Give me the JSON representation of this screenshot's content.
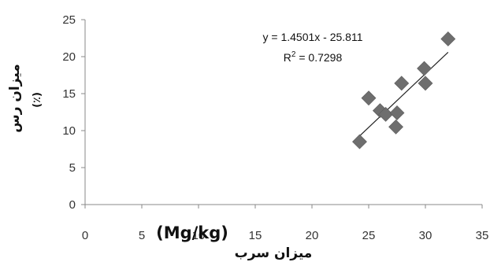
{
  "chart_data": {
    "type": "scatter",
    "xlim": [
      0,
      35
    ],
    "ylim": [
      0,
      25
    ],
    "x_ticks": [
      "0",
      "5",
      "10",
      "15",
      "20",
      "25",
      "30",
      "35"
    ],
    "y_ticks": [
      "0",
      "5",
      "10",
      "15",
      "20",
      "25"
    ],
    "xlabel": "میزان سرب",
    "x_unit": "(Mg/kg)",
    "ylabel": "میزان رس",
    "y_unit": "(٪)",
    "grid": false,
    "series": [
      {
        "marker": "diamond",
        "color": "#6e6e6e",
        "points": [
          {
            "x": 24.2,
            "y": 8.5
          },
          {
            "x": 25.0,
            "y": 14.4
          },
          {
            "x": 26.0,
            "y": 12.7
          },
          {
            "x": 26.5,
            "y": 12.2
          },
          {
            "x": 27.4,
            "y": 10.5
          },
          {
            "x": 27.5,
            "y": 12.4
          },
          {
            "x": 27.9,
            "y": 16.4
          },
          {
            "x": 29.9,
            "y": 18.4
          },
          {
            "x": 30.0,
            "y": 16.4
          },
          {
            "x": 32.0,
            "y": 22.4
          }
        ]
      }
    ],
    "trendline": {
      "slope": 1.4501,
      "intercept": -25.811,
      "x_range": [
        24.2,
        32.0
      ],
      "equation": "y = 1.4501x - 25.811",
      "r2_label": "R",
      "r2_sup": "2",
      "r2_value": " = 0.7298"
    }
  }
}
